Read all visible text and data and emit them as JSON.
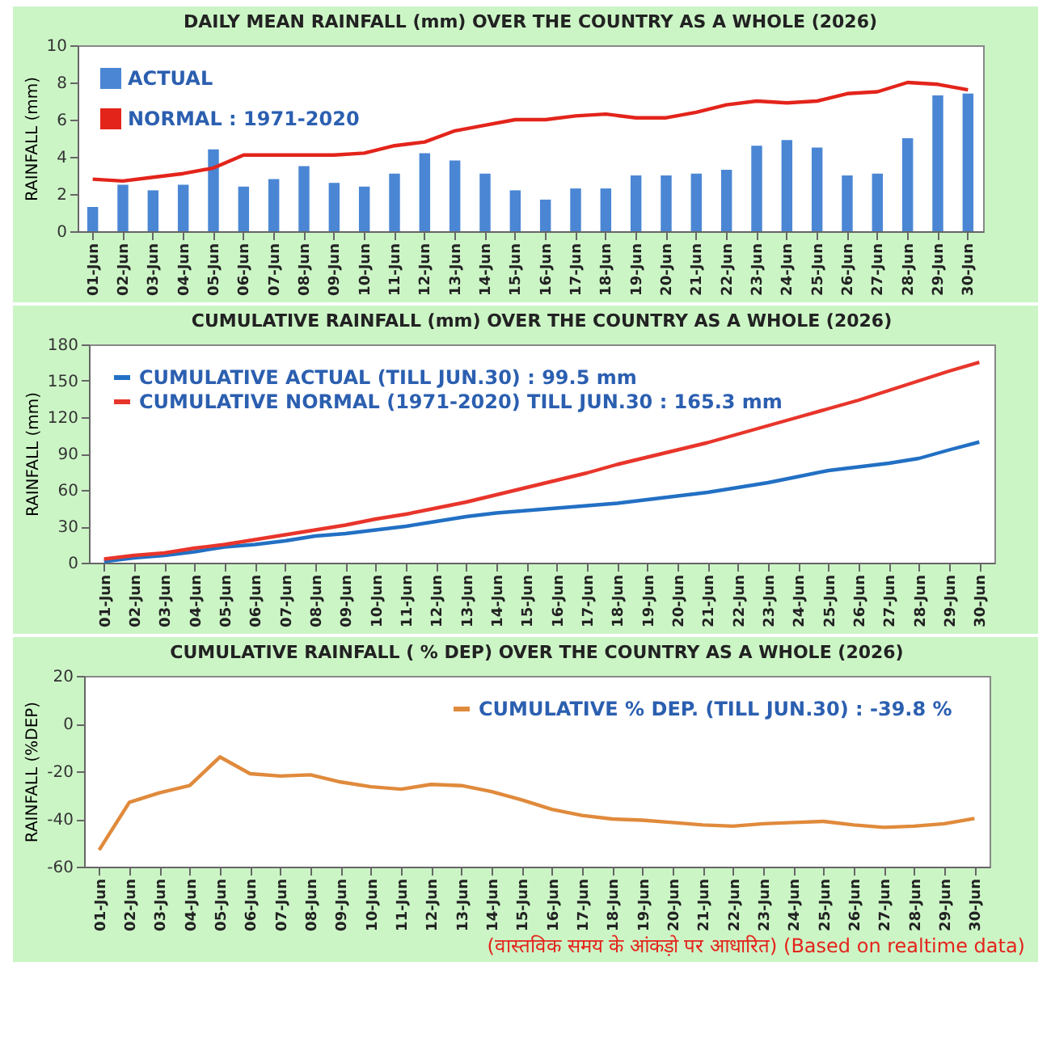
{
  "chart_data": [
    {
      "type": "bar",
      "title": "DAILY MEAN RAINFALL (mm) OVER THE COUNTRY AS A WHOLE  (2026)",
      "ylabel": "RAINFALL  (mm)",
      "categories": [
        "01-Jun",
        "02-Jun",
        "03-Jun",
        "04-Jun",
        "05-Jun",
        "06-Jun",
        "07-Jun",
        "08-Jun",
        "09-Jun",
        "10-Jun",
        "11-Jun",
        "12-Jun",
        "13-Jun",
        "14-Jun",
        "15-Jun",
        "16-Jun",
        "17-Jun",
        "18-Jun",
        "19-Jun",
        "20-Jun",
        "21-Jun",
        "22-Jun",
        "23-Jun",
        "24-Jun",
        "25-Jun",
        "26-Jun",
        "27-Jun",
        "28-Jun",
        "29-Jun",
        "30-Jun"
      ],
      "series": [
        {
          "name": "ACTUAL",
          "type": "bar",
          "color": "#4a86d4",
          "values": [
            1.3,
            2.5,
            2.2,
            2.5,
            4.4,
            2.4,
            2.8,
            3.5,
            2.6,
            2.4,
            3.1,
            4.2,
            3.8,
            3.1,
            2.2,
            1.7,
            2.3,
            2.3,
            3.0,
            3.0,
            3.1,
            3.3,
            4.6,
            4.9,
            4.5,
            3.0,
            3.1,
            5.0,
            7.3,
            7.4
          ]
        },
        {
          "name": "NORMAL : 1971-2020",
          "type": "line",
          "color": "#e3241b",
          "values": [
            2.8,
            2.7,
            2.9,
            3.1,
            3.4,
            4.1,
            4.1,
            4.1,
            4.1,
            4.2,
            4.6,
            4.8,
            5.4,
            5.7,
            6.0,
            6.0,
            6.2,
            6.3,
            6.1,
            6.1,
            6.4,
            6.8,
            7.0,
            6.9,
            7.0,
            7.4,
            7.5,
            8.0,
            7.9,
            7.6
          ]
        }
      ],
      "ylim": [
        0,
        10
      ],
      "yticks": [
        0,
        2,
        4,
        6,
        8,
        10
      ],
      "legend": "top left"
    },
    {
      "type": "line",
      "title": "CUMULATIVE  RAINFALL (mm) OVER THE COUNTRY AS A WHOLE  (2026)",
      "ylabel": "RAINFALL  (mm)",
      "categories": [
        "01-Jun",
        "02-Jun",
        "03-Jun",
        "04-Jun",
        "05-Jun",
        "06-Jun",
        "07-Jun",
        "08-Jun",
        "09-Jun",
        "10-Jun",
        "11-Jun",
        "12-Jun",
        "13-Jun",
        "14-Jun",
        "15-Jun",
        "16-Jun",
        "17-Jun",
        "18-Jun",
        "19-Jun",
        "20-Jun",
        "21-Jun",
        "22-Jun",
        "23-Jun",
        "24-Jun",
        "25-Jun",
        "26-Jun",
        "27-Jun",
        "28-Jun",
        "29-Jun",
        "30-Jun"
      ],
      "series": [
        {
          "name": "CUMULATIVE ACTUAL (TILL JUN.30) : 99.5 mm",
          "color": "#2270c4",
          "values": [
            1,
            4,
            6,
            9,
            13,
            15,
            18,
            22,
            24,
            27,
            30,
            34,
            38,
            41,
            43,
            45,
            47,
            49,
            52,
            55,
            58,
            62,
            66,
            71,
            76,
            79,
            82,
            86,
            93,
            99.5
          ]
        },
        {
          "name": "CUMULATIVE NORMAL (1971-2020) TILL JUN.30 : 165.3 mm",
          "color": "#e8352b",
          "values": [
            3,
            6,
            8,
            12,
            15,
            19,
            23,
            27,
            31,
            36,
            40,
            45,
            50,
            56,
            62,
            68,
            74,
            81,
            87,
            93,
            99,
            106,
            113,
            120,
            127,
            134,
            142,
            150,
            158,
            165.3
          ]
        }
      ],
      "ylim": [
        0,
        180
      ],
      "yticks": [
        0,
        30,
        60,
        90,
        120,
        150,
        180
      ],
      "legend": "top left",
      "marker": "none",
      "line_style": "solid"
    },
    {
      "type": "line",
      "title": "CUMULATIVE RAINFALL ( % DEP) OVER THE COUNTRY AS A WHOLE (2026)",
      "ylabel": "RAINFALL  (%DEP)",
      "categories": [
        "01-Jun",
        "02-Jun",
        "03-Jun",
        "04-Jun",
        "05-Jun",
        "06-Jun",
        "07-Jun",
        "08-Jun",
        "09-Jun",
        "10-Jun",
        "11-Jun",
        "12-Jun",
        "13-Jun",
        "14-Jun",
        "15-Jun",
        "16-Jun",
        "17-Jun",
        "18-Jun",
        "19-Jun",
        "20-Jun",
        "21-Jun",
        "22-Jun",
        "23-Jun",
        "24-Jun",
        "25-Jun",
        "26-Jun",
        "27-Jun",
        "28-Jun",
        "29-Jun",
        "30-Jun"
      ],
      "series": [
        {
          "name": "CUMULATIVE % DEP.  (TILL  JUN.30) : -39.8 %",
          "color": "#e08a3c",
          "values": [
            -53,
            -33,
            -29,
            -26,
            -14,
            -21,
            -22,
            -21.5,
            -24.5,
            -26.5,
            -27.5,
            -25.5,
            -26,
            -28.5,
            -32,
            -36,
            -38.5,
            -40,
            -40.5,
            -41.5,
            -42.5,
            -43,
            -42,
            -41.5,
            -41,
            -42.5,
            -43.5,
            -43,
            -42,
            -39.8
          ]
        }
      ],
      "ylim": [
        -60,
        20
      ],
      "yticks": [
        -60,
        -40,
        -20,
        0,
        20
      ],
      "legend": "top right",
      "marker": "none",
      "line_style": "solid",
      "annotations": [
        "(वास्तविक समय के आंकड़ो पर आधारित) (Based on realtime data)"
      ]
    }
  ]
}
